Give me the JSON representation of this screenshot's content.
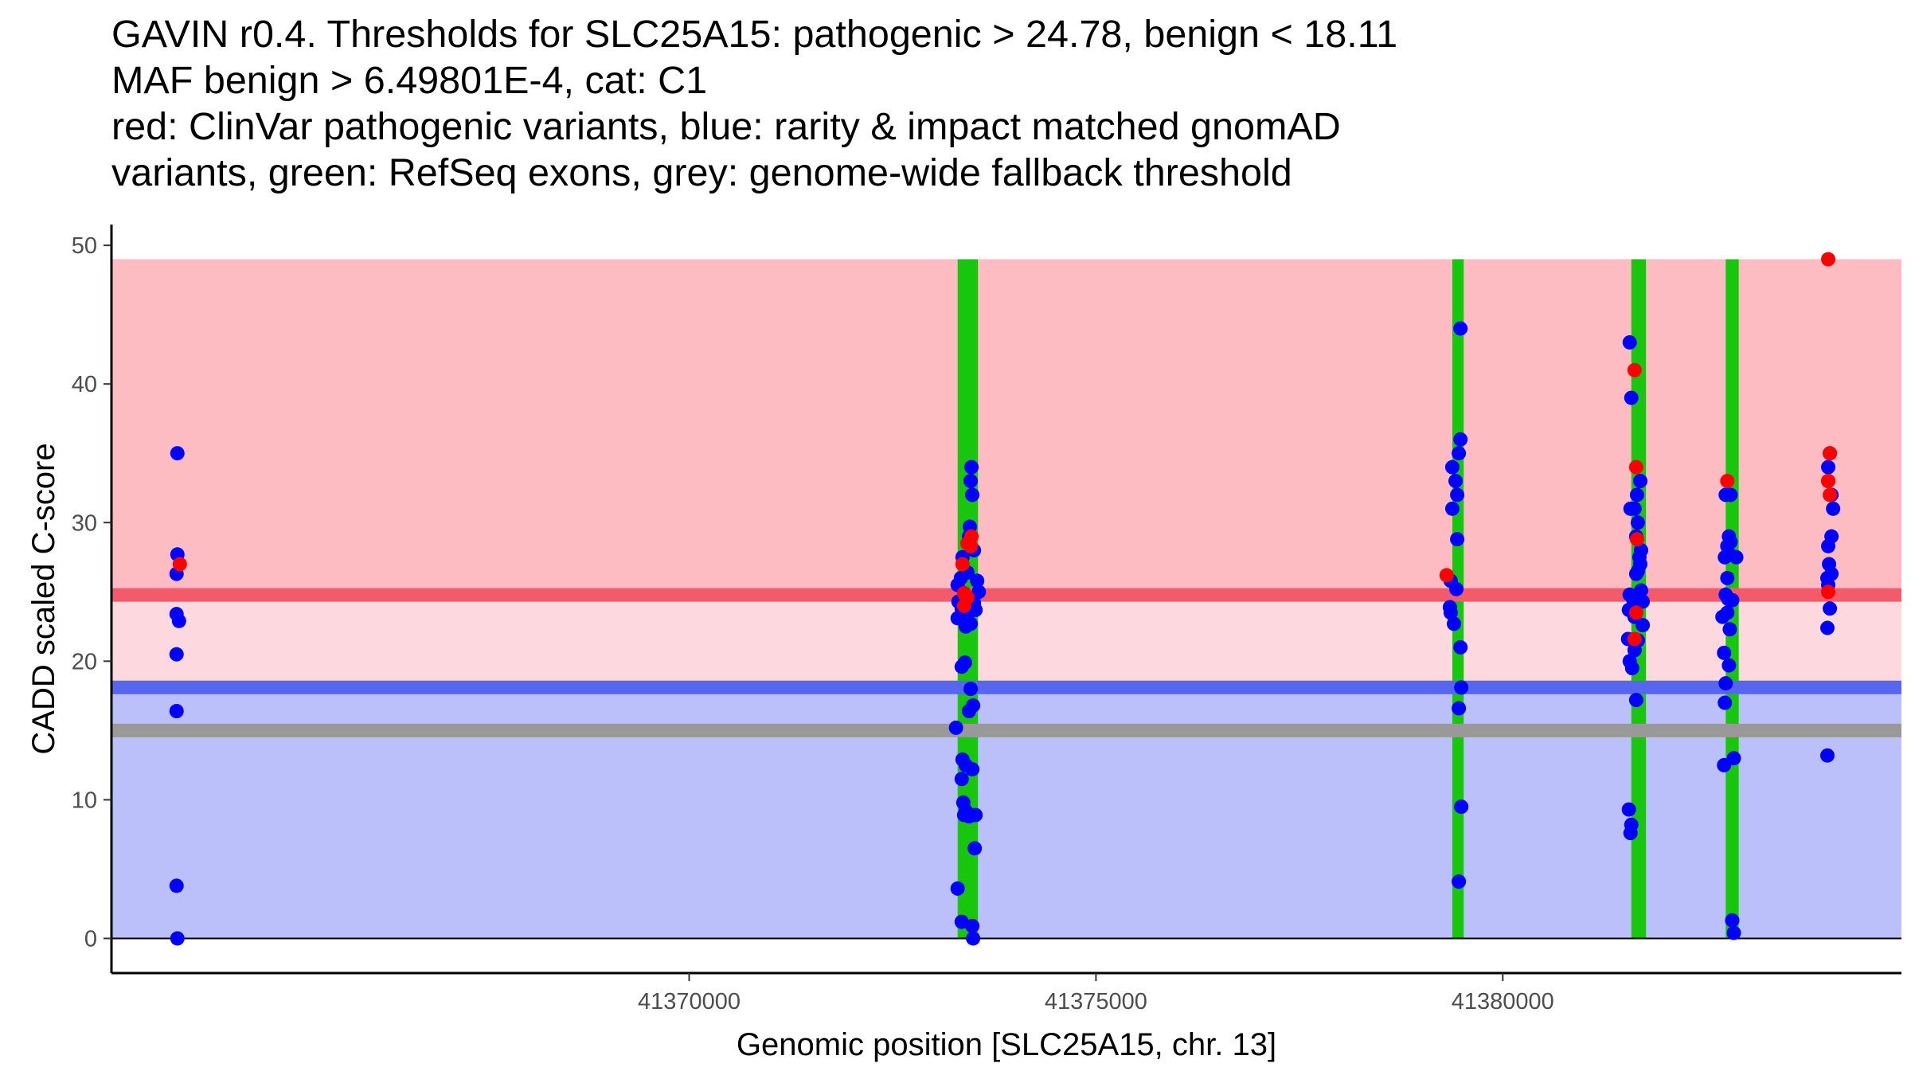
{
  "title_lines": [
    "GAVIN r0.4. Thresholds for SLC25A15: pathogenic > 24.78, benign < 18.11",
    "MAF benign > 6.49801E-4, cat: C1",
    "red: ClinVar pathogenic variants, blue: rarity & impact matched gnomAD",
    "variants, green: RefSeq exons, grey: genome-wide fallback threshold"
  ],
  "chart_data": {
    "type": "scatter",
    "xlabel": "Genomic position [SLC25A15, chr. 13]",
    "ylabel": "CADD scaled C-score",
    "xlim": [
      41362900,
      41384900
    ],
    "ylim": [
      -2.5,
      51.5
    ],
    "x_ticks": [
      41370000,
      41375000,
      41380000
    ],
    "x_tick_labels": [
      "41370000",
      "41375000",
      "41380000"
    ],
    "y_ticks": [
      0,
      10,
      20,
      30,
      40,
      50
    ],
    "y_tick_labels": [
      "0",
      "10",
      "20",
      "30",
      "40",
      "50"
    ],
    "colors": {
      "pathogenic_region": "#fcbcc2",
      "intermediate_region": "#fdd8de",
      "benign_region": "#bcc0fa",
      "pathogenic_line": "#f35b6b",
      "benign_line": "#5666ee",
      "fallback_line": "#999999",
      "exon": "#19c60e",
      "clinvar_point": "#ff0000",
      "gnomad_point": "#0000ff"
    },
    "regions": [
      {
        "name": "pathogenic",
        "ymin": 24.78,
        "ymax": 49
      },
      {
        "name": "intermediate",
        "ymin": 18.11,
        "ymax": 24.78
      },
      {
        "name": "benign",
        "ymin": 0,
        "ymax": 18.11
      }
    ],
    "thresholds": {
      "pathogenic": 24.78,
      "benign": 18.11,
      "fallback": 15.0
    },
    "exons": [
      {
        "start": 41373300,
        "end": 41373550
      },
      {
        "start": 41379380,
        "end": 41379520
      },
      {
        "start": 41381580,
        "end": 41381760
      },
      {
        "start": 41382740,
        "end": 41382900
      }
    ],
    "series": [
      {
        "name": "gnomAD",
        "points": [
          [
            41363710,
            35.0
          ],
          [
            41363710,
            27.7
          ],
          [
            41363700,
            26.3
          ],
          [
            41363700,
            23.4
          ],
          [
            41363730,
            22.9
          ],
          [
            41363700,
            20.5
          ],
          [
            41363700,
            16.4
          ],
          [
            41363700,
            3.8
          ],
          [
            41363710,
            0.0
          ],
          [
            41373300,
            25.5
          ],
          [
            41373340,
            26.0
          ],
          [
            41373380,
            24.9
          ],
          [
            41373310,
            24.3
          ],
          [
            41373350,
            23.8
          ],
          [
            41373300,
            23.1
          ],
          [
            41373420,
            23.4
          ],
          [
            41373460,
            22.7
          ],
          [
            41373400,
            22.5
          ],
          [
            41373520,
            23.7
          ],
          [
            41373500,
            24.2
          ],
          [
            41373540,
            25.8
          ],
          [
            41373560,
            25.0
          ],
          [
            41373360,
            27.5
          ],
          [
            41373420,
            26.4
          ],
          [
            41373470,
            34.0
          ],
          [
            41373460,
            33.0
          ],
          [
            41373480,
            32.0
          ],
          [
            41373450,
            29.7
          ],
          [
            41373440,
            29.0
          ],
          [
            41373500,
            28.0
          ],
          [
            41373350,
            19.6
          ],
          [
            41373390,
            19.9
          ],
          [
            41373460,
            18.0
          ],
          [
            41373440,
            16.4
          ],
          [
            41373490,
            16.8
          ],
          [
            41373280,
            15.2
          ],
          [
            41373360,
            12.9
          ],
          [
            41373400,
            12.5
          ],
          [
            41373480,
            12.2
          ],
          [
            41373350,
            11.5
          ],
          [
            41373370,
            9.8
          ],
          [
            41373400,
            9.2
          ],
          [
            41373380,
            8.9
          ],
          [
            41373440,
            8.8
          ],
          [
            41373520,
            8.9
          ],
          [
            41373510,
            6.5
          ],
          [
            41373300,
            3.6
          ],
          [
            41373350,
            1.2
          ],
          [
            41373480,
            0.9
          ],
          [
            41373490,
            0.0
          ],
          [
            41379380,
            34.0
          ],
          [
            41379420,
            33.0
          ],
          [
            41379460,
            35.0
          ],
          [
            41379480,
            36.0
          ],
          [
            41379440,
            32.0
          ],
          [
            41379380,
            31.0
          ],
          [
            41379440,
            28.8
          ],
          [
            41379360,
            25.8
          ],
          [
            41379430,
            25.2
          ],
          [
            41379350,
            23.9
          ],
          [
            41379360,
            23.5
          ],
          [
            41379400,
            22.7
          ],
          [
            41379480,
            21.0
          ],
          [
            41379490,
            18.1
          ],
          [
            41379460,
            16.6
          ],
          [
            41379490,
            9.5
          ],
          [
            41379460,
            4.1
          ],
          [
            41379480,
            44.0
          ],
          [
            41381560,
            43.0
          ],
          [
            41381580,
            39.0
          ],
          [
            41381690,
            33.0
          ],
          [
            41381650,
            32.0
          ],
          [
            41381620,
            31.0
          ],
          [
            41381570,
            31.0
          ],
          [
            41381660,
            30.0
          ],
          [
            41381640,
            29.0
          ],
          [
            41381700,
            28.0
          ],
          [
            41381680,
            27.5
          ],
          [
            41381690,
            27.0
          ],
          [
            41381660,
            26.5
          ],
          [
            41381640,
            26.3
          ],
          [
            41381560,
            24.8
          ],
          [
            41381620,
            24.6
          ],
          [
            41381700,
            25.1
          ],
          [
            41381720,
            24.3
          ],
          [
            41381600,
            24.5
          ],
          [
            41381550,
            23.7
          ],
          [
            41381620,
            23.2
          ],
          [
            41381720,
            22.6
          ],
          [
            41381660,
            21.5
          ],
          [
            41381540,
            21.6
          ],
          [
            41381620,
            20.8
          ],
          [
            41381560,
            20.0
          ],
          [
            41381590,
            19.5
          ],
          [
            41381640,
            17.2
          ],
          [
            41381550,
            9.3
          ],
          [
            41381580,
            8.2
          ],
          [
            41381570,
            7.6
          ],
          [
            41382740,
            32.0
          ],
          [
            41382800,
            32.0
          ],
          [
            41382780,
            29.0
          ],
          [
            41382800,
            28.6
          ],
          [
            41382760,
            28.3
          ],
          [
            41382730,
            27.5
          ],
          [
            41382790,
            27.7
          ],
          [
            41382870,
            27.5
          ],
          [
            41382760,
            26.0
          ],
          [
            41382740,
            24.8
          ],
          [
            41382770,
            24.5
          ],
          [
            41382820,
            24.4
          ],
          [
            41382700,
            23.2
          ],
          [
            41382760,
            23.5
          ],
          [
            41382790,
            22.3
          ],
          [
            41382720,
            20.6
          ],
          [
            41382780,
            19.7
          ],
          [
            41382740,
            18.4
          ],
          [
            41382730,
            17.0
          ],
          [
            41382720,
            12.5
          ],
          [
            41382840,
            13.0
          ],
          [
            41382820,
            1.3
          ],
          [
            41382840,
            0.4
          ],
          [
            41384020,
            35.0
          ],
          [
            41384000,
            34.0
          ],
          [
            41384000,
            33.0
          ],
          [
            41384040,
            32.0
          ],
          [
            41384060,
            31.0
          ],
          [
            41384040,
            29.0
          ],
          [
            41384000,
            28.3
          ],
          [
            41384010,
            27.0
          ],
          [
            41384040,
            26.3
          ],
          [
            41383990,
            26.0
          ],
          [
            41384000,
            25.5
          ],
          [
            41384020,
            23.8
          ],
          [
            41383990,
            22.4
          ],
          [
            41383990,
            13.2
          ]
        ]
      },
      {
        "name": "ClinVar",
        "points": [
          [
            41363740,
            27.0
          ],
          [
            41373360,
            27.0
          ],
          [
            41373420,
            24.6
          ],
          [
            41373380,
            24.9
          ],
          [
            41373380,
            24.0
          ],
          [
            41373420,
            28.5
          ],
          [
            41373470,
            29.0
          ],
          [
            41373460,
            28.3
          ],
          [
            41379310,
            26.2
          ],
          [
            41381620,
            41.0
          ],
          [
            41381640,
            34.0
          ],
          [
            41381650,
            28.8
          ],
          [
            41381640,
            23.5
          ],
          [
            41381620,
            21.6
          ],
          [
            41382760,
            33.0
          ],
          [
            41384000,
            49.0
          ],
          [
            41384020,
            35.0
          ],
          [
            41384000,
            33.0
          ],
          [
            41384020,
            32.0
          ],
          [
            41384000,
            25.0
          ]
        ]
      }
    ]
  }
}
